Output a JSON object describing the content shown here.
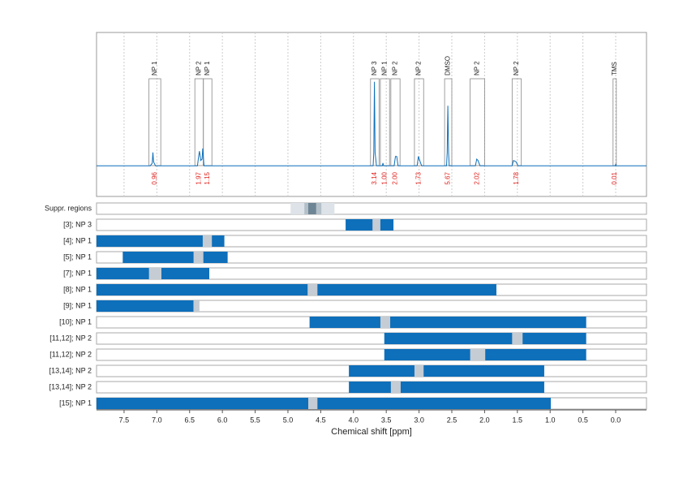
{
  "chart_data": {
    "type": "nmr",
    "xlabel": "Chemical shift [ppm]",
    "xlim": [
      7.92,
      -0.47
    ],
    "ylim": [
      -0.23,
      1
    ],
    "xticks": [
      7.5,
      {
        "value": 7,
        "label": "7.0"
      },
      6.5,
      {
        "value": 6,
        "label": "6.0"
      },
      5.5,
      {
        "value": 5,
        "label": "5.0"
      },
      4.5,
      {
        "value": 4,
        "label": "4.0"
      },
      3.5,
      {
        "value": 3,
        "label": "3.0"
      },
      2.5,
      {
        "value": 2,
        "label": "2.0"
      },
      1.5,
      {
        "value": 1,
        "label": "1.0"
      },
      0.5,
      {
        "value": 0,
        "label": "0.0"
      }
    ],
    "grid": true,
    "color": "#0e6fba",
    "gap_color": "#c5ccd3",
    "integral_color": "#e0201b",
    "spectrum": {
      "x": [
        7.92,
        7.1,
        7.07,
        7.06,
        7.05,
        7.02,
        6.38,
        6.36,
        6.35,
        6.33,
        6.31,
        6.3,
        6.28,
        6.1,
        3.7,
        3.69,
        3.68,
        3.67,
        3.65,
        3.56,
        3.55,
        3.54,
        3.38,
        3.36,
        3.34,
        3.32,
        3.03,
        3.01,
        2.99,
        2.96,
        2.58,
        2.57,
        2.56,
        2.55,
        2.54,
        2.14,
        2.12,
        2.1,
        2.07,
        1.58,
        1.56,
        1.52,
        1.49,
        0.01,
        0.0,
        -0.01,
        -0.47
      ],
      "y": [
        0,
        0,
        0.02,
        0.1,
        0.03,
        0,
        0,
        0.08,
        0.11,
        0.04,
        0.05,
        0.13,
        0,
        0,
        0,
        0.1,
        0.63,
        0.1,
        0,
        0,
        0.02,
        0,
        0,
        0.07,
        0.07,
        0,
        0,
        0.07,
        0.04,
        0,
        0,
        0.1,
        0.45,
        0.1,
        0,
        0,
        0.05,
        0.04,
        0,
        0,
        0.04,
        0.03,
        0,
        0,
        0.01,
        0,
        0
      ]
    },
    "annotations": {
      "labels": [
        "NP 1",
        "NP 2",
        "NP 1",
        "NP 3",
        "NP 1",
        "NP 2",
        "NP 2",
        "DMSO",
        "NP 2",
        "NP 2",
        "TMS"
      ],
      "ranges": [
        [
          7.12,
          6.94
        ],
        [
          6.42,
          6.29
        ],
        [
          6.29,
          6.16
        ],
        [
          3.74,
          3.61
        ],
        [
          3.59,
          3.45
        ],
        [
          3.43,
          3.29
        ],
        [
          3.07,
          2.93
        ],
        [
          2.61,
          2.5
        ],
        [
          2.22,
          2.0
        ],
        [
          1.58,
          1.44
        ],
        [
          0.04,
          -0.01
        ]
      ],
      "values": [
        0.96,
        1.97,
        1.15,
        3.14,
        1,
        2,
        1.73,
        5.67,
        2.02,
        1.78,
        0.01
      ],
      "value_labels": [
        "0.96",
        "1.97",
        "1.15",
        "3.14",
        "1.00",
        "2.00",
        "1.73",
        "5.67",
        "2.02",
        "1.78",
        "0.01"
      ]
    },
    "suppressed": {
      "label": "Suppr. regions",
      "regions": [
        [
          4.96,
          4.29
        ],
        [
          4.75,
          4.49
        ],
        [
          4.69,
          4.57
        ]
      ],
      "colors": [
        "#dde3e8",
        "#b3c0ca",
        "#6e8595"
      ]
    },
    "rows": [
      {
        "label": "[3]; NP 3",
        "range": [
          4.12,
          3.39
        ],
        "gap": [
          3.71,
          3.59
        ]
      },
      {
        "label": "[4]; NP 1",
        "range": [
          7.92,
          5.97
        ],
        "gap": [
          6.3,
          6.16
        ]
      },
      {
        "label": "[5]; NP 1",
        "range": [
          7.52,
          5.92
        ],
        "gap": [
          6.44,
          6.29
        ]
      },
      {
        "label": "[7]; NP 1",
        "range": [
          7.92,
          6.2
        ],
        "gap": [
          7.12,
          6.93
        ]
      },
      {
        "label": "[8]; NP 1",
        "range": [
          7.92,
          1.82
        ],
        "gap": [
          4.7,
          4.55
        ]
      },
      {
        "label": "[9]; NP 1",
        "range": [
          7.92,
          6.44
        ],
        "gap": [
          6.44,
          6.35
        ]
      },
      {
        "label": "[10]; NP 1",
        "range": [
          4.67,
          0.45
        ],
        "gap": [
          3.59,
          3.44
        ]
      },
      {
        "label": "[11,12]; NP 2",
        "range": [
          3.53,
          0.45
        ],
        "gap": [
          1.58,
          1.42
        ]
      },
      {
        "label": "[11,12]; NP 2",
        "range": [
          3.53,
          0.45
        ],
        "gap": [
          2.22,
          1.99
        ]
      },
      {
        "label": "[13,14]; NP 2",
        "range": [
          4.07,
          1.09
        ],
        "gap": [
          3.07,
          2.93
        ]
      },
      {
        "label": "[13,14]; NP 2",
        "range": [
          4.07,
          1.09
        ],
        "gap": [
          3.43,
          3.28
        ]
      },
      {
        "label": "[15]; NP 1",
        "range": [
          7.92,
          0.99
        ],
        "gap": [
          4.69,
          4.55
        ]
      }
    ]
  }
}
